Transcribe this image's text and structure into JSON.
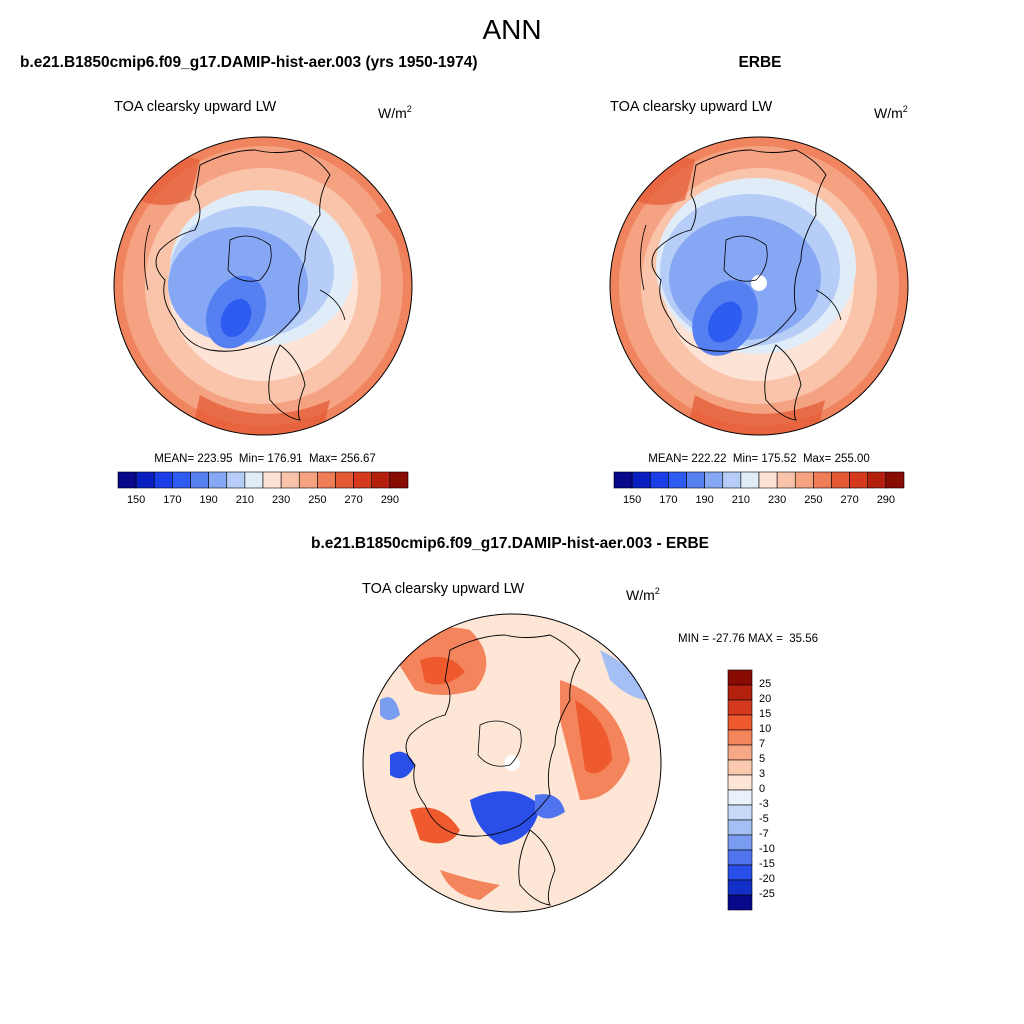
{
  "figure": {
    "season": "ANN",
    "panels": [
      {
        "title": "b.e21.B1850cmip6.f09_g17.DAMIP-hist-aer.003 (yrs 1950-1974)",
        "variable": "TOA clearsky upward LW",
        "units": "W/m",
        "units_exp": "2",
        "stats": "MEAN= 223.95  Min= 176.91  Max= 256.67"
      },
      {
        "title": "ERBE",
        "variable": "TOA clearsky upward LW",
        "units": "W/m",
        "units_exp": "2",
        "stats": "MEAN= 222.22  Min= 175.52  Max= 255.00"
      },
      {
        "title": "b.e21.B1850cmip6.f09_g17.DAMIP-hist-aer.003 - ERBE",
        "variable": "TOA clearsky upward LW",
        "units": "W/m",
        "units_exp": "2",
        "stats": "MIN = -27.76 MAX =  35.56"
      }
    ],
    "colorbar_abs": {
      "colors": [
        "#08088a",
        "#0a1fc2",
        "#1b3ee6",
        "#2f5cf0",
        "#5580f2",
        "#86a8f4",
        "#b5cdf7",
        "#e1ecf9",
        "#fde3d6",
        "#f9c4aa",
        "#f4a281",
        "#ee7d58",
        "#e45a35",
        "#d53a1e",
        "#b3200d",
        "#8a0a04"
      ],
      "ticks": [
        "150",
        "170",
        "190",
        "210",
        "230",
        "250",
        "270",
        "290"
      ]
    },
    "colorbar_diff": {
      "colors": [
        "#8a0a04",
        "#b3200d",
        "#d53a1e",
        "#ee5a2e",
        "#f4845c",
        "#f8a886",
        "#fbc9ad",
        "#fde6d6",
        "#eaf1fb",
        "#c7d9f6",
        "#a3bff3",
        "#7a9cf1",
        "#4f74ee",
        "#2a4fe8",
        "#1230c8",
        "#08088a"
      ],
      "ticks": [
        "25",
        "20",
        "15",
        "10",
        "7",
        "5",
        "3",
        "0",
        "-3",
        "-5",
        "-7",
        "-10",
        "-15",
        "-20",
        "-25"
      ]
    }
  }
}
